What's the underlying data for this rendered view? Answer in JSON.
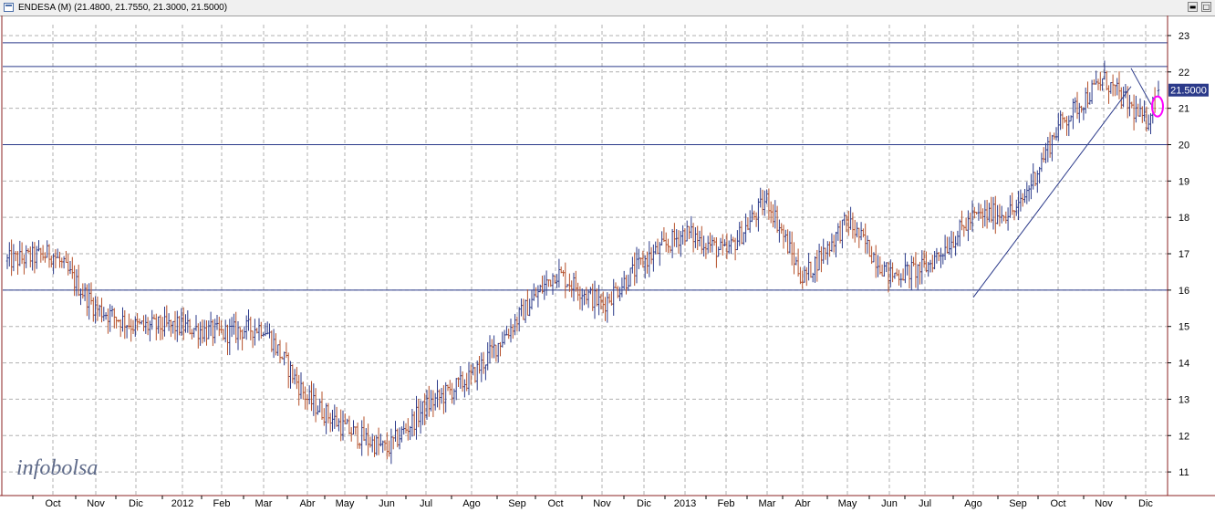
{
  "window": {
    "title": "ENDESA (M) (21.4800, 21.7550, 21.3000, 21.5000)",
    "watermark": "infobolsa"
  },
  "chart_data": {
    "type": "ohlc",
    "title": "ENDESA (M) (21.4800, 21.7550, 21.3000, 21.5000)",
    "ohlc_last": {
      "open": 21.48,
      "high": 21.755,
      "low": 21.3,
      "close": 21.5
    },
    "last_price_label": "21.5000",
    "ylim": [
      10.35,
      23.3
    ],
    "y_ticks": [
      11,
      12,
      13,
      14,
      15,
      16,
      17,
      18,
      19,
      20,
      21,
      22,
      23
    ],
    "x_labels": [
      "Oct",
      "Nov",
      "Dic",
      "2012",
      "Feb",
      "Mar",
      "Abr",
      "May",
      "Jun",
      "Jul",
      "Ago",
      "Sep",
      "Oct",
      "Nov",
      "Dic",
      "2013",
      "Feb",
      "Mar",
      "Abr",
      "May",
      "Jun",
      "Jul",
      "Ago",
      "Sep",
      "Oct",
      "Nov",
      "Dic"
    ],
    "grid": true,
    "horizontal_lines": [
      16.0,
      20.0,
      22.15,
      22.8
    ],
    "trendlines": [
      {
        "from": [
          "2013-08",
          15.8
        ],
        "to": [
          "2013-11-late",
          21.6
        ]
      },
      {
        "from": [
          "2013-11-late",
          22.1
        ],
        "to": [
          "2013-12-mid",
          21.1
        ]
      }
    ],
    "monthly_path": [
      [
        "2011-09",
        16.8
      ],
      [
        "2011-10",
        17.0
      ],
      [
        "2011-11",
        15.5
      ],
      [
        "2011-12",
        15.0
      ],
      [
        "2012-01",
        15.0
      ],
      [
        "2012-02",
        14.8
      ],
      [
        "2012-03",
        15.0
      ],
      [
        "2012-04",
        13.0
      ],
      [
        "2012-05",
        12.2
      ],
      [
        "2012-06",
        11.6
      ],
      [
        "2012-07",
        12.8
      ],
      [
        "2012-08",
        13.6
      ],
      [
        "2012-09",
        15.2
      ],
      [
        "2012-10",
        16.5
      ],
      [
        "2012-11",
        15.6
      ],
      [
        "2012-12",
        16.8
      ],
      [
        "2013-01",
        17.6
      ],
      [
        "2013-02",
        17.0
      ],
      [
        "2013-03",
        18.5
      ],
      [
        "2013-04",
        16.3
      ],
      [
        "2013-05",
        17.9
      ],
      [
        "2013-06",
        16.4
      ],
      [
        "2013-07",
        16.6
      ],
      [
        "2013-08",
        18.0
      ],
      [
        "2013-09",
        18.2
      ],
      [
        "2013-10",
        20.5
      ],
      [
        "2013-11",
        21.8
      ],
      [
        "2013-12",
        20.6
      ],
      [
        "2013-12-end",
        21.5
      ]
    ],
    "colors": {
      "up_bar": "#2b3a8a",
      "down_bar": "#b5502a",
      "reference_line": "#2b3a8a",
      "grid": "#b0b0b0",
      "price_label_bg": "#2b3a8a",
      "marker": "#ff00ff",
      "axis_border": "#8b2323"
    }
  }
}
